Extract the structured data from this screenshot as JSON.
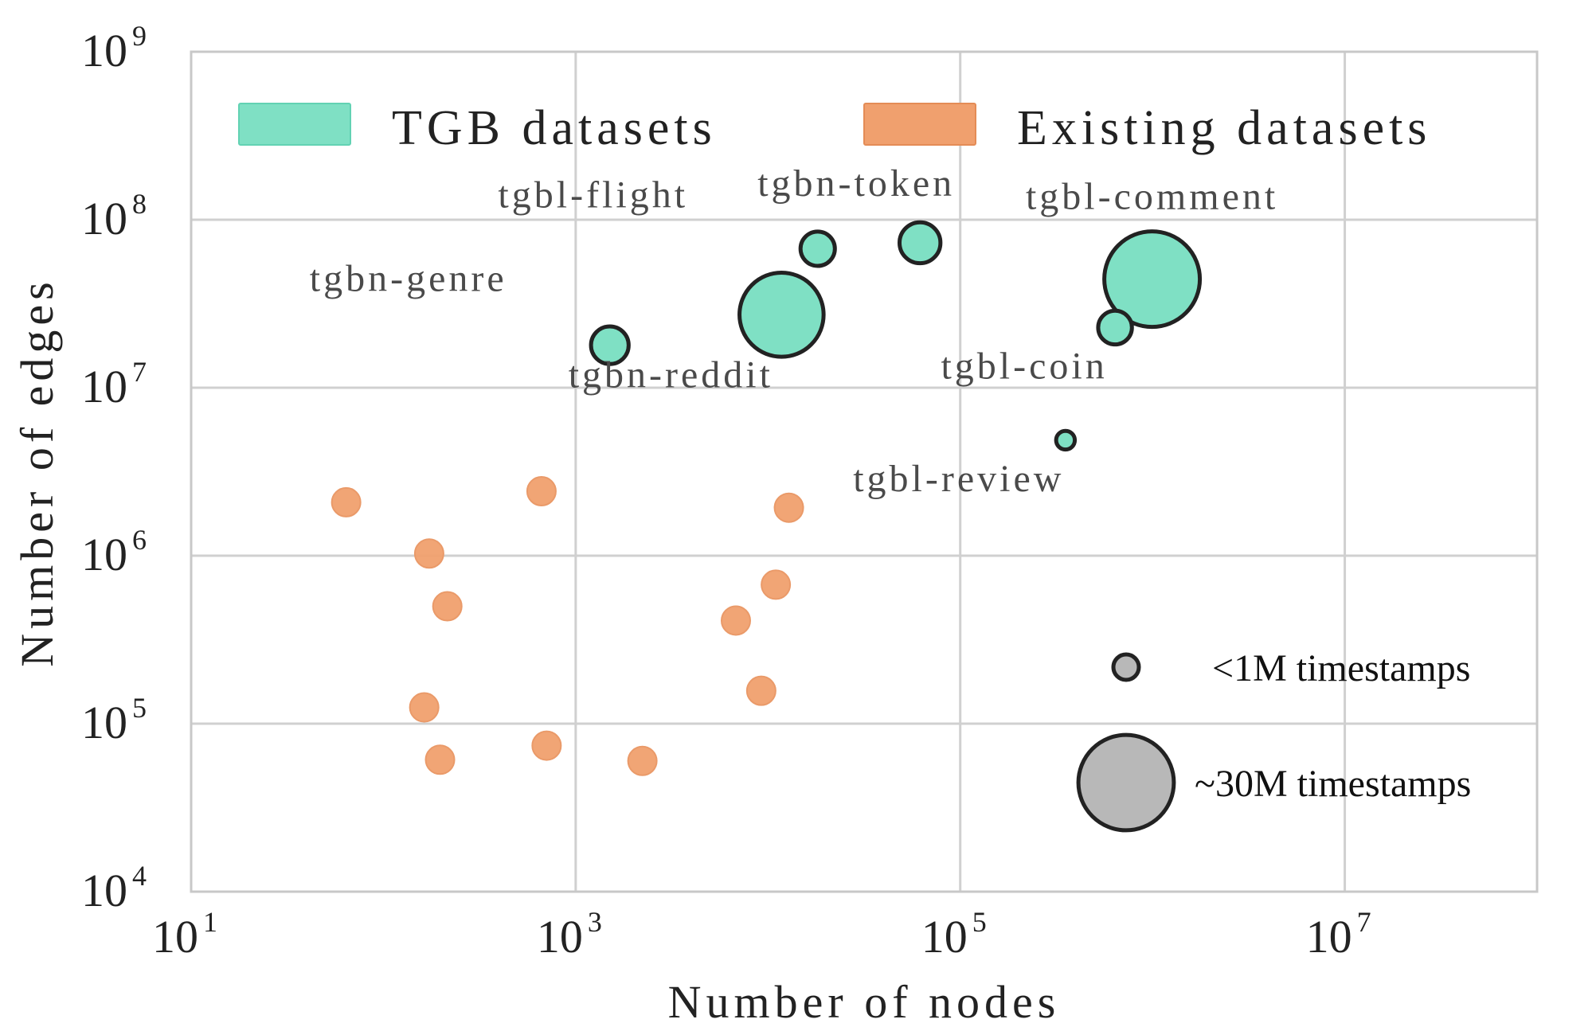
{
  "chart_data": {
    "type": "scatter",
    "xscale": "log",
    "yscale": "log",
    "xlim": [
      10,
      100000000
    ],
    "ylim": [
      10000,
      1000000000
    ],
    "grid": true,
    "xlabel": "Number of nodes",
    "ylabel": "Number of edges",
    "x_ticks": [
      {
        "base": "10",
        "exp": "1",
        "value": 10
      },
      {
        "base": "10",
        "exp": "3",
        "value": 1000
      },
      {
        "base": "10",
        "exp": "5",
        "value": 100000
      },
      {
        "base": "10",
        "exp": "7",
        "value": 10000000
      }
    ],
    "y_ticks": [
      {
        "base": "10",
        "exp": "4",
        "value": 10000
      },
      {
        "base": "10",
        "exp": "5",
        "value": 100000
      },
      {
        "base": "10",
        "exp": "6",
        "value": 1000000
      },
      {
        "base": "10",
        "exp": "7",
        "value": 10000000
      },
      {
        "base": "10",
        "exp": "8",
        "value": 100000000
      },
      {
        "base": "10",
        "exp": "9",
        "value": 1000000000
      }
    ],
    "legend": {
      "position": "top",
      "entries": [
        {
          "label": "TGB datasets",
          "color": "#7fe0c4"
        },
        {
          "label": "Existing datasets",
          "color": "#f0a06e"
        }
      ]
    },
    "size_legend": {
      "position": "bottom-right",
      "entries": [
        {
          "label": "<1M timestamps",
          "timestamps": 1000000
        },
        {
          "label": "~30M timestamps",
          "timestamps": 30000000
        }
      ]
    },
    "series": [
      {
        "name": "TGB datasets",
        "color": "#7fe0c4",
        "edge_color": "#222222",
        "points": [
          {
            "label": "tgbn-genre",
            "x": 1505,
            "y": 17900000,
            "timestamps": 2000000
          },
          {
            "label": "tgbl-flight",
            "x": 18143,
            "y": 67200000,
            "timestamps": 1400000
          },
          {
            "label": "tgbn-reddit",
            "x": 11766,
            "y": 27200000,
            "timestamps": 21900000
          },
          {
            "label": "tgbn-token",
            "x": 61756,
            "y": 72900000,
            "timestamps": 2700000
          },
          {
            "label": "tgbl-comment",
            "x": 994790,
            "y": 44300000,
            "timestamps": 30100000
          },
          {
            "label": "tgbl-coin",
            "x": 638486,
            "y": 22800000,
            "timestamps": 1300000
          },
          {
            "label": "tgbl-review",
            "x": 352637,
            "y": 4870000,
            "timestamps": 6900
          }
        ]
      },
      {
        "name": "Existing datasets",
        "color": "#f0a06e",
        "points": [
          {
            "x": 64,
            "y": 2080000
          },
          {
            "x": 173,
            "y": 1030000
          },
          {
            "x": 215,
            "y": 500000
          },
          {
            "x": 163,
            "y": 125000
          },
          {
            "x": 197,
            "y": 61000
          },
          {
            "x": 664,
            "y": 2420000
          },
          {
            "x": 706,
            "y": 74000
          },
          {
            "x": 2223,
            "y": 60000
          },
          {
            "x": 6809,
            "y": 411000
          },
          {
            "x": 10984,
            "y": 672000
          },
          {
            "x": 9227,
            "y": 157000
          },
          {
            "x": 12849,
            "y": 1930000
          }
        ]
      }
    ]
  }
}
